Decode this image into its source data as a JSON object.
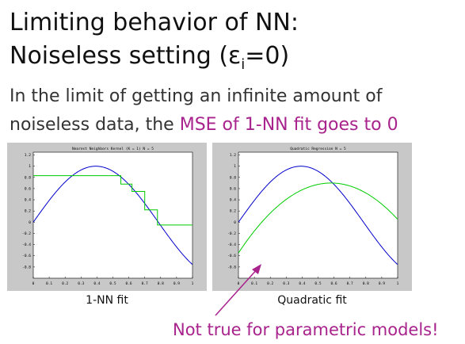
{
  "slide": {
    "title_line1": "Limiting behavior of NN:",
    "title_line2_pre": "Noiseless setting (ε",
    "title_sub": "i",
    "title_line2_post": "=0)",
    "body_line1": "In the limit of getting an infinite amount of",
    "body_line2_pre": "noiseless data, the ",
    "body_line2_accent": "MSE of 1-NN fit goes to 0",
    "note": "Not true for parametric models!",
    "accent_color": "#a8238c"
  },
  "chart_data": [
    {
      "type": "line",
      "title": "Nearest Neighbors Kernel (K = 1) N = 5",
      "caption": "1-NN fit",
      "xlim": [
        0,
        1
      ],
      "ylim": [
        -1,
        1.25
      ],
      "xticks": [
        "0",
        "0.1",
        "0.2",
        "0.3",
        "0.4",
        "0.5",
        "0.6",
        "0.7",
        "0.8",
        "0.9",
        "1"
      ],
      "yticks": [
        "1.2",
        "1",
        "0.8",
        "0.6",
        "0.4",
        "0.2",
        "0",
        "-0.2",
        "-0.4",
        "-0.6",
        "-0.8"
      ],
      "series": [
        {
          "color": "#0000cc",
          "function": "sin",
          "x": [
            0,
            1
          ]
        },
        {
          "color": "#00cc00",
          "kind": "step",
          "x": [
            0,
            0.55,
            0.55,
            0.62,
            0.62,
            0.7,
            0.7,
            0.78,
            0.78,
            1.0
          ],
          "y": [
            0.83,
            0.83,
            0.68,
            0.68,
            0.55,
            0.55,
            0.22,
            0.22,
            -0.05,
            -0.05
          ]
        }
      ]
    },
    {
      "type": "line",
      "title": "Quadratic Regression N = 5",
      "caption": "Quadratic fit",
      "xlim": [
        0,
        1
      ],
      "ylim": [
        -1,
        1.25
      ],
      "xticks": [
        "0",
        "0.1",
        "0.2",
        "0.3",
        "0.4",
        "0.5",
        "0.6",
        "0.7",
        "0.8",
        "0.9",
        "1"
      ],
      "yticks": [
        "1.2",
        "1",
        "0.8",
        "0.6",
        "0.4",
        "0.2",
        "0",
        "-0.2",
        "-0.4",
        "-0.6",
        "-0.8"
      ],
      "series": [
        {
          "color": "#0000cc",
          "function": "sin",
          "x": [
            0,
            1
          ]
        },
        {
          "color": "#00cc00",
          "kind": "quadratic",
          "coeffs": [
            -0.55,
            4.3,
            -3.7
          ],
          "x": [
            0,
            1
          ]
        }
      ]
    }
  ]
}
